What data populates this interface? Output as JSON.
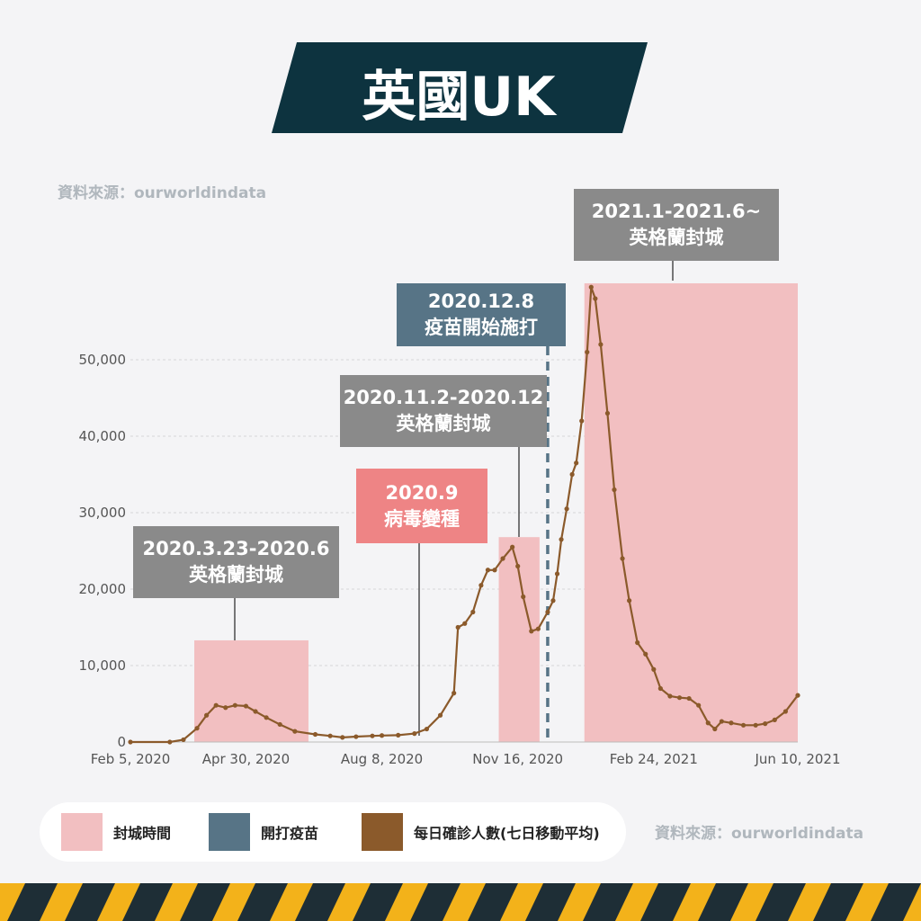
{
  "title": "英國UK",
  "source_label": "資料來源：ourworldindata",
  "colors": {
    "banner": "#0d333f",
    "lockdown": "#f2bfc1",
    "vaccine": "#577486",
    "cases_line": "#8b5a2b",
    "callout_gray": "#8a8a8a",
    "callout_pink": "#ee8485",
    "callout_slate": "#577486",
    "background": "#f4f4f6",
    "hazard_yellow": "#f3b21a",
    "hazard_dark": "#1e2e36"
  },
  "callouts": {
    "lockdown1": {
      "line1": "2020.3.23-2020.6",
      "line2": "英格蘭封城"
    },
    "variant": {
      "line1": "2020.9",
      "line2": "病毒變種"
    },
    "lockdown2": {
      "line1": "2020.11.2-2020.12",
      "line2": "英格蘭封城"
    },
    "vaccine": {
      "line1": "2020.12.8",
      "line2": "疫苗開始施打"
    },
    "lockdown3": {
      "line1": "2021.1-2021.6~",
      "line2": "英格蘭封城"
    }
  },
  "legend": [
    {
      "label": "封城時間",
      "icon": "pink-square"
    },
    {
      "label": "開打疫苗",
      "icon": "slate-square"
    },
    {
      "label": "每日確診人數(七日移動平均)",
      "icon": "brown-square"
    }
  ],
  "chart_data": {
    "type": "line",
    "title": "",
    "xlabel": "",
    "ylabel": "",
    "x_ticks": [
      "Feb 5, 2020",
      "Apr 30, 2020",
      "Aug 8, 2020",
      "Nov 16, 2020",
      "Feb 24, 2021",
      "Jun 10, 2021"
    ],
    "x_tick_dates": [
      "2020-02-05",
      "2020-04-30",
      "2020-08-08",
      "2020-11-16",
      "2021-02-24",
      "2021-06-10"
    ],
    "y_ticks": [
      "0",
      "10,000",
      "20,000",
      "30,000",
      "40,000",
      "50,000"
    ],
    "y_tick_values": [
      0,
      10000,
      20000,
      30000,
      40000,
      50000
    ],
    "ylim": [
      0,
      60000
    ],
    "xlim": [
      "2020-02-05",
      "2021-06-10"
    ],
    "grid": true,
    "series": [
      {
        "name": "每日確診人數(七日移動平均)",
        "x": [
          "2020-02-05",
          "2020-03-05",
          "2020-03-15",
          "2020-03-25",
          "2020-04-01",
          "2020-04-08",
          "2020-04-15",
          "2020-04-22",
          "2020-04-30",
          "2020-05-07",
          "2020-05-15",
          "2020-05-25",
          "2020-06-05",
          "2020-06-20",
          "2020-07-01",
          "2020-07-10",
          "2020-07-20",
          "2020-08-01",
          "2020-08-08",
          "2020-08-20",
          "2020-09-01",
          "2020-09-10",
          "2020-09-20",
          "2020-09-30",
          "2020-10-03",
          "2020-10-08",
          "2020-10-14",
          "2020-10-20",
          "2020-10-25",
          "2020-10-30",
          "2020-11-05",
          "2020-11-12",
          "2020-11-16",
          "2020-11-20",
          "2020-11-26",
          "2020-12-01",
          "2020-12-08",
          "2020-12-12",
          "2020-12-15",
          "2020-12-18",
          "2020-12-22",
          "2020-12-26",
          "2020-12-29",
          "2021-01-02",
          "2021-01-06",
          "2021-01-09",
          "2021-01-12",
          "2021-01-16",
          "2021-01-21",
          "2021-01-26",
          "2021-02-01",
          "2021-02-06",
          "2021-02-12",
          "2021-02-18",
          "2021-02-24",
          "2021-03-01",
          "2021-03-08",
          "2021-03-15",
          "2021-03-22",
          "2021-03-29",
          "2021-04-05",
          "2021-04-10",
          "2021-04-15",
          "2021-04-22",
          "2021-05-01",
          "2021-05-10",
          "2021-05-17",
          "2021-05-24",
          "2021-06-01",
          "2021-06-10"
        ],
        "values": [
          0,
          0,
          300,
          1800,
          3500,
          4800,
          4500,
          4800,
          4700,
          4000,
          3200,
          2300,
          1400,
          1000,
          800,
          600,
          700,
          800,
          850,
          900,
          1100,
          1700,
          3500,
          6400,
          15000,
          15500,
          17000,
          20500,
          22500,
          22500,
          24000,
          25500,
          23000,
          19000,
          14500,
          14800,
          17000,
          18500,
          22000,
          26500,
          30500,
          35000,
          36500,
          42000,
          51000,
          59500,
          58000,
          52000,
          43000,
          33000,
          24000,
          18500,
          13000,
          11500,
          9500,
          7000,
          6000,
          5800,
          5700,
          4800,
          2500,
          1700,
          2700,
          2500,
          2200,
          2200,
          2400,
          2900,
          4000,
          6100
        ]
      }
    ],
    "shaded_regions": [
      {
        "label": "封城時間",
        "start": "2020-03-23",
        "end": "2020-06-15",
        "ymax": 13300
      },
      {
        "label": "封城時間",
        "start": "2020-11-02",
        "end": "2020-12-02",
        "ymax": 26800
      },
      {
        "label": "封城時間",
        "start": "2021-01-04",
        "end": "2021-06-10",
        "ymax": 60000
      }
    ],
    "vertical_markers": [
      {
        "label": "開打疫苗",
        "date": "2020-12-08"
      }
    ]
  }
}
